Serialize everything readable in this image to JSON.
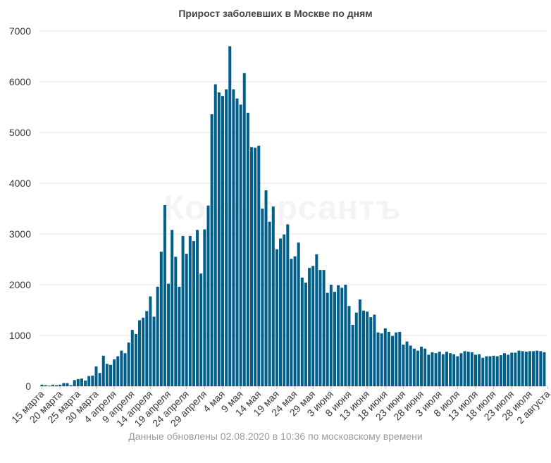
{
  "chart_data": {
    "type": "bar",
    "title": "Прирост заболевших в Москве по дням",
    "xlabel": "",
    "ylabel": "",
    "ylim": [
      0,
      7000
    ],
    "yticks": [
      0,
      1000,
      2000,
      3000,
      4000,
      5000,
      6000,
      7000
    ],
    "grid": true,
    "legend": "none",
    "bar_color": "#005f8a",
    "tick_labels": [
      {
        "index": 0,
        "label": "15 марта"
      },
      {
        "index": 5,
        "label": "20 марта"
      },
      {
        "index": 10,
        "label": "25 марта"
      },
      {
        "index": 15,
        "label": "30 марта"
      },
      {
        "index": 20,
        "label": "4 апреля"
      },
      {
        "index": 25,
        "label": "9 апреля"
      },
      {
        "index": 30,
        "label": "14 апреля"
      },
      {
        "index": 35,
        "label": "19 апреля"
      },
      {
        "index": 40,
        "label": "24 апреля"
      },
      {
        "index": 45,
        "label": "29 апреля"
      },
      {
        "index": 50,
        "label": "4 мая"
      },
      {
        "index": 55,
        "label": "9 мая"
      },
      {
        "index": 60,
        "label": "14 мая"
      },
      {
        "index": 65,
        "label": "19 мая"
      },
      {
        "index": 70,
        "label": "24 мая"
      },
      {
        "index": 75,
        "label": "29 мая"
      },
      {
        "index": 80,
        "label": "3 июня"
      },
      {
        "index": 85,
        "label": "8 июня"
      },
      {
        "index": 90,
        "label": "13 июня"
      },
      {
        "index": 95,
        "label": "18 июня"
      },
      {
        "index": 100,
        "label": "23 июня"
      },
      {
        "index": 105,
        "label": "28 июня"
      },
      {
        "index": 110,
        "label": "3 июля"
      },
      {
        "index": 115,
        "label": "8 июля"
      },
      {
        "index": 120,
        "label": "13 июля"
      },
      {
        "index": 125,
        "label": "18 июля"
      },
      {
        "index": 130,
        "label": "23 июля"
      },
      {
        "index": 135,
        "label": "28 июля"
      },
      {
        "index": 140,
        "label": "2 августа"
      }
    ],
    "values": [
      30,
      20,
      10,
      30,
      20,
      30,
      60,
      60,
      20,
      120,
      140,
      150,
      110,
      200,
      210,
      390,
      260,
      600,
      440,
      420,
      530,
      590,
      700,
      650,
      860,
      1110,
      1030,
      1300,
      1350,
      1480,
      1770,
      1370,
      1960,
      2650,
      3570,
      2020,
      3080,
      2550,
      1960,
      2960,
      2610,
      2960,
      2860,
      3080,
      2220,
      3090,
      3560,
      5360,
      5950,
      5790,
      5720,
      5850,
      6700,
      5850,
      5670,
      5550,
      6170,
      5390,
      4710,
      4700,
      4740,
      3500,
      3860,
      3240,
      3540,
      2700,
      2910,
      2990,
      3190,
      2510,
      2560,
      2830,
      2140,
      2040,
      2330,
      2370,
      2600,
      2290,
      2290,
      1840,
      2000,
      1860,
      1990,
      1940,
      2000,
      1580,
      1210,
      1450,
      1710,
      1490,
      1470,
      1360,
      1410,
      1060,
      1040,
      1140,
      1070,
      990,
      1060,
      1070,
      820,
      880,
      800,
      740,
      700,
      780,
      740,
      620,
      670,
      650,
      680,
      630,
      680,
      650,
      630,
      590,
      650,
      690,
      680,
      670,
      620,
      630,
      560,
      590,
      590,
      600,
      590,
      610,
      650,
      620,
      660,
      660,
      700,
      690,
      680,
      690,
      690,
      700,
      690,
      670
    ]
  },
  "footer": {
    "text": "Данные обновлены 02.08.2020 в 10:36 по московскому времени"
  },
  "watermark": {
    "text": "Коммерсантъ"
  }
}
